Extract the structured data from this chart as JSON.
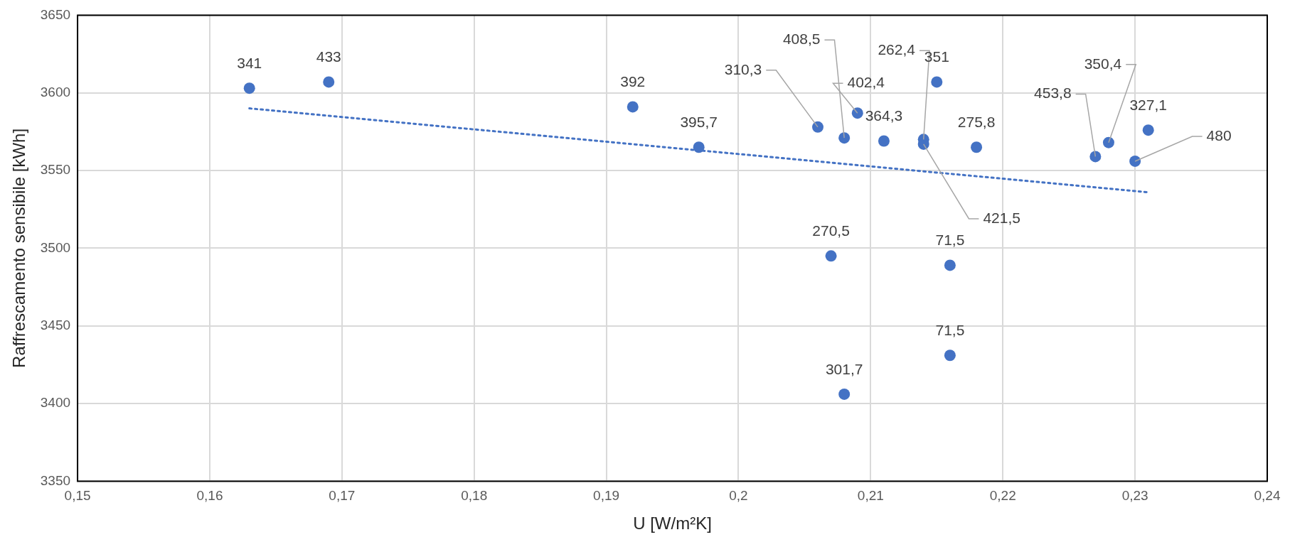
{
  "chart_data": {
    "type": "scatter",
    "xlabel": "U [W/m²K]",
    "ylabel": "Raffrescamento sensibile [kWh]",
    "xlim": [
      0.15,
      0.24
    ],
    "xticks": [
      {
        "value": 0.15,
        "label": "0,15"
      },
      {
        "value": 0.16,
        "label": "0,16"
      },
      {
        "value": 0.17,
        "label": "0,17"
      },
      {
        "value": 0.18,
        "label": "0,18"
      },
      {
        "value": 0.19,
        "label": "0,19"
      },
      {
        "value": 0.2,
        "label": "0,2"
      },
      {
        "value": 0.21,
        "label": "0,21"
      },
      {
        "value": 0.22,
        "label": "0,22"
      },
      {
        "value": 0.23,
        "label": "0,23"
      },
      {
        "value": 0.24,
        "label": "0,24"
      }
    ],
    "ylim": [
      3350,
      3650
    ],
    "yticks": [
      3350,
      3400,
      3450,
      3500,
      3550,
      3600,
      3650
    ],
    "grid": true,
    "legend": false,
    "series": [
      {
        "marker": "circle",
        "color": "#4472c4",
        "x": [
          0.163,
          0.169,
          0.192,
          0.197,
          0.206,
          0.208,
          0.209,
          0.211,
          0.214,
          0.214,
          0.215,
          0.218,
          0.207,
          0.216,
          0.216,
          0.208,
          0.227,
          0.228,
          0.231,
          0.23
        ],
        "values": [
          3603,
          3607,
          3591,
          3565,
          3578,
          3571,
          3587,
          3569,
          3570,
          3567,
          3607,
          3565,
          3495,
          3489,
          3431,
          3406,
          3559,
          3568,
          3576,
          3556
        ]
      },
      {
        "type": "line",
        "marker": "none",
        "line_style": "dotted",
        "color": "#4472c4",
        "x": [
          0.163,
          0.231
        ],
        "values": [
          3590,
          3536
        ]
      }
    ],
    "annotations": [
      {
        "text": "341",
        "x": 0.163,
        "y": 3603
      },
      {
        "text": "433",
        "x": 0.169,
        "y": 3607
      },
      {
        "text": "392",
        "x": 0.192,
        "y": 3591
      },
      {
        "text": "395,7",
        "x": 0.197,
        "y": 3565
      },
      {
        "text": "310,3",
        "x": 0.206,
        "y": 3578
      },
      {
        "text": "408,5",
        "x": 0.208,
        "y": 3571
      },
      {
        "text": "402,4",
        "x": 0.209,
        "y": 3587
      },
      {
        "text": "364,3",
        "x": 0.211,
        "y": 3569
      },
      {
        "text": "262,4",
        "x": 0.214,
        "y": 3570
      },
      {
        "text": "421,5",
        "x": 0.214,
        "y": 3567
      },
      {
        "text": "351",
        "x": 0.215,
        "y": 3607
      },
      {
        "text": "275,8",
        "x": 0.218,
        "y": 3565
      },
      {
        "text": "270,5",
        "x": 0.207,
        "y": 3495
      },
      {
        "text": "71,5",
        "x": 0.216,
        "y": 3489
      },
      {
        "text": "71,5",
        "x": 0.216,
        "y": 3431
      },
      {
        "text": "301,7",
        "x": 0.208,
        "y": 3406
      },
      {
        "text": "453,8",
        "x": 0.227,
        "y": 3559
      },
      {
        "text": "350,4",
        "x": 0.228,
        "y": 3568
      },
      {
        "text": "327,1",
        "x": 0.231,
        "y": 3576
      },
      {
        "text": "480",
        "x": 0.23,
        "y": 3556
      }
    ]
  }
}
